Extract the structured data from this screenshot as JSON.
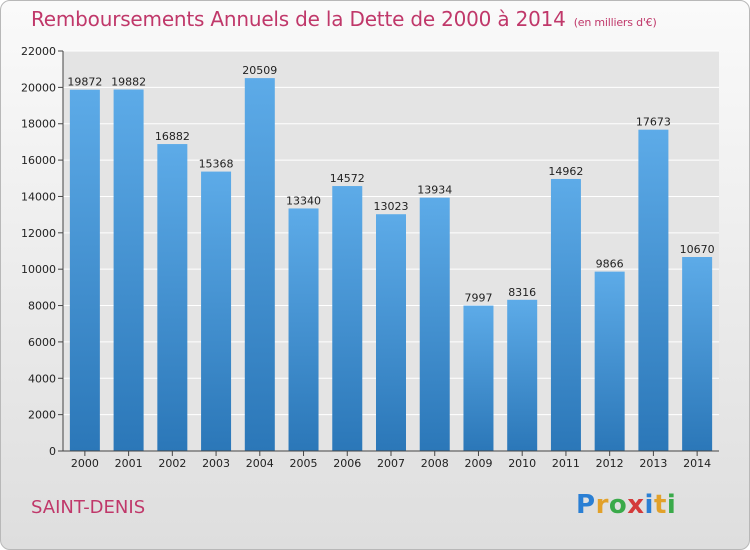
{
  "chart_data": {
    "type": "bar",
    "title": "Remboursements Annuels de la Dette de 2000 à 2014",
    "subtitle": "(en milliers d'€)",
    "categories": [
      "2000",
      "2001",
      "2002",
      "2003",
      "2004",
      "2005",
      "2006",
      "2007",
      "2008",
      "2009",
      "2010",
      "2011",
      "2012",
      "2013",
      "2014"
    ],
    "values": [
      19872,
      19882,
      16882,
      15368,
      20509,
      13340,
      14572,
      13023,
      13934,
      7997,
      8316,
      14962,
      9866,
      17673,
      10670
    ],
    "ylim": [
      0,
      22000
    ],
    "yticks": [
      0,
      2000,
      4000,
      6000,
      8000,
      10000,
      12000,
      14000,
      16000,
      18000,
      20000,
      22000
    ],
    "xlabel": "",
    "ylabel": "",
    "grid": true,
    "colors": {
      "bar_top": "#5dabe8",
      "bar_bottom": "#2b77b8",
      "grid": "#ffffff",
      "plot_bg": "#e4e4e4"
    }
  },
  "footer": {
    "town": "SAINT-DENIS",
    "logo_letters": [
      "P",
      "r",
      "o",
      "x",
      "i",
      "t",
      "i"
    ],
    "logo_colors": [
      "#2a7fd4",
      "#e2a12a",
      "#3aaa4a",
      "#d43a3a",
      "#2a7fd4",
      "#e2a12a",
      "#3aaa4a"
    ]
  }
}
